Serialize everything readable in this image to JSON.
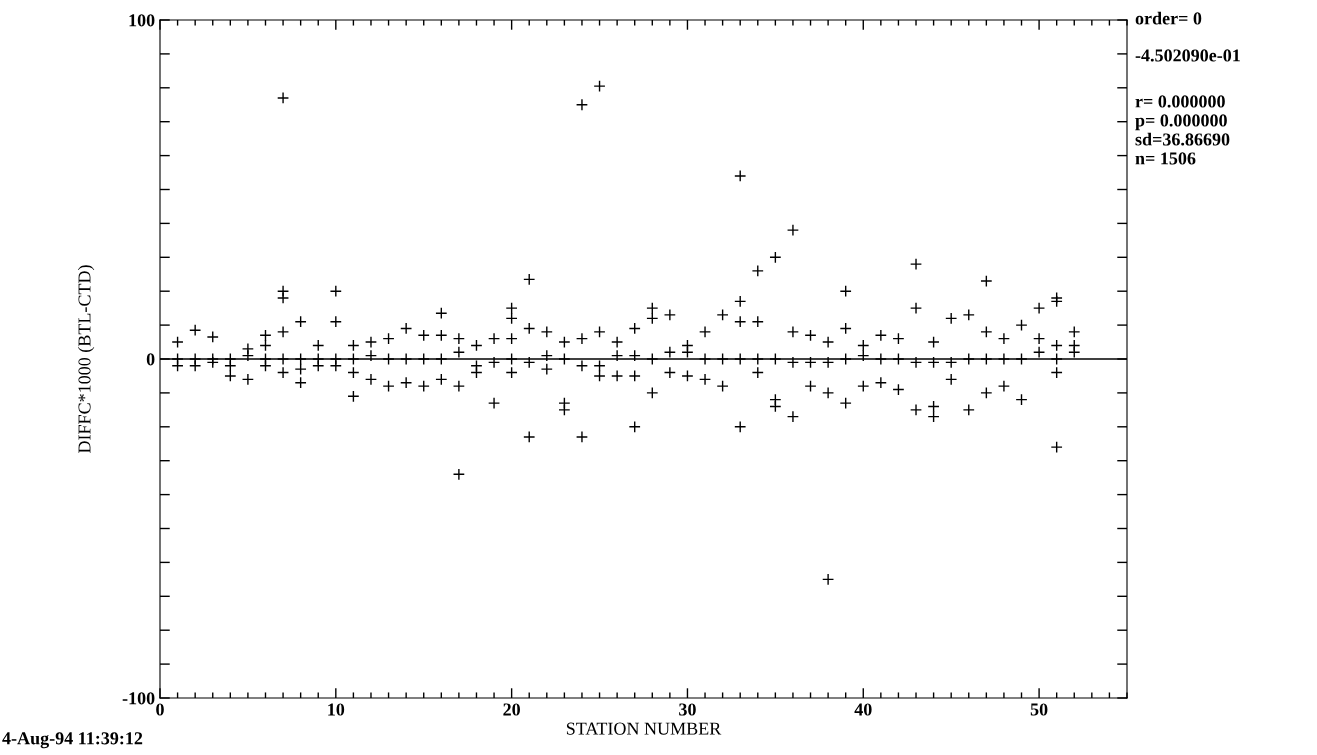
{
  "chart_data": {
    "type": "scatter",
    "xlabel": "STATION NUMBER",
    "ylabel": "DIFFC*1000 (BTL-CTD)",
    "annotations": [
      "order= 0",
      "-4.502090e-01",
      "r= 0.000000",
      "p= 0.000000",
      "sd=36.86690",
      "n= 1506",
      "4-Aug-94 11:39:12"
    ],
    "xlim": [
      0,
      55
    ],
    "ylim": [
      -100,
      100
    ],
    "xticks": [
      0,
      {
        "value": 1,
        "label": null
      },
      {
        "value": 2,
        "label": null
      },
      {
        "value": 3,
        "label": null
      },
      {
        "value": 4,
        "label": null
      },
      {
        "value": 5,
        "label": null
      },
      {
        "value": 6,
        "label": null
      },
      {
        "value": 7,
        "label": null
      },
      {
        "value": 8,
        "label": null
      },
      {
        "value": 9,
        "label": null
      },
      10,
      {
        "value": 11,
        "label": null
      },
      {
        "value": 12,
        "label": null
      },
      {
        "value": 13,
        "label": null
      },
      {
        "value": 14,
        "label": null
      },
      {
        "value": 15,
        "label": null
      },
      {
        "value": 16,
        "label": null
      },
      {
        "value": 17,
        "label": null
      },
      {
        "value": 18,
        "label": null
      },
      {
        "value": 19,
        "label": null
      },
      20,
      {
        "value": 21,
        "label": null
      },
      {
        "value": 22,
        "label": null
      },
      {
        "value": 23,
        "label": null
      },
      {
        "value": 24,
        "label": null
      },
      {
        "value": 25,
        "label": null
      },
      {
        "value": 26,
        "label": null
      },
      {
        "value": 27,
        "label": null
      },
      {
        "value": 28,
        "label": null
      },
      {
        "value": 29,
        "label": null
      },
      30,
      {
        "value": 31,
        "label": null
      },
      {
        "value": 32,
        "label": null
      },
      {
        "value": 33,
        "label": null
      },
      {
        "value": 34,
        "label": null
      },
      {
        "value": 35,
        "label": null
      },
      {
        "value": 36,
        "label": null
      },
      {
        "value": 37,
        "label": null
      },
      {
        "value": 38,
        "label": null
      },
      {
        "value": 39,
        "label": null
      },
      40,
      {
        "value": 41,
        "label": null
      },
      {
        "value": 42,
        "label": null
      },
      {
        "value": 43,
        "label": null
      },
      {
        "value": 44,
        "label": null
      },
      {
        "value": 45,
        "label": null
      },
      {
        "value": 46,
        "label": null
      },
      {
        "value": 47,
        "label": null
      },
      {
        "value": 48,
        "label": null
      },
      {
        "value": 49,
        "label": null
      },
      50,
      {
        "value": 51,
        "label": null
      },
      {
        "value": 52,
        "label": null
      },
      {
        "value": 53,
        "label": null
      },
      {
        "value": 54,
        "label": null
      },
      {
        "value": 55,
        "label": null
      }
    ],
    "yticks": [
      -100,
      {
        "value": -90,
        "label": null
      },
      {
        "value": -80,
        "label": null
      },
      {
        "value": -70,
        "label": null
      },
      {
        "value": -60,
        "label": null
      },
      {
        "value": -50,
        "label": null
      },
      {
        "value": -40,
        "label": null
      },
      {
        "value": -30,
        "label": null
      },
      {
        "value": -20,
        "label": null
      },
      {
        "value": -10,
        "label": null
      },
      0,
      {
        "value": 10,
        "label": null
      },
      {
        "value": 20,
        "label": null
      },
      {
        "value": 30,
        "label": null
      },
      {
        "value": 40,
        "label": null
      },
      {
        "value": 50,
        "label": null
      },
      {
        "value": 60,
        "label": null
      },
      {
        "value": 70,
        "label": null
      },
      {
        "value": 80,
        "label": null
      },
      {
        "value": 90,
        "label": null
      },
      100
    ],
    "ref_lines": [
      {
        "axis": "y",
        "value": 0,
        "color": "#000000"
      }
    ],
    "grid": false,
    "marker": "cross",
    "series": [
      {
        "color": "#000000",
        "x": [
          1,
          1,
          1,
          2,
          2,
          2,
          3,
          3,
          3,
          4,
          4,
          4,
          5,
          5,
          5,
          6,
          6,
          6,
          6,
          7,
          7,
          7,
          7,
          7,
          7,
          8,
          8,
          8,
          8,
          9,
          9,
          9,
          10,
          10,
          10,
          10,
          11,
          11,
          11,
          11,
          12,
          12,
          12,
          13,
          13,
          13,
          14,
          14,
          14,
          15,
          15,
          15,
          16,
          16,
          16,
          16,
          17,
          17,
          17,
          17,
          18,
          18,
          18,
          19,
          19,
          19,
          20,
          20,
          20,
          20,
          20,
          21,
          21,
          21,
          21,
          22,
          22,
          22,
          23,
          23,
          23,
          23,
          24,
          24,
          24,
          24,
          25,
          25,
          25,
          25,
          26,
          26,
          26,
          27,
          27,
          27,
          27,
          28,
          28,
          28,
          28,
          29,
          29,
          29,
          30,
          30,
          30,
          31,
          31,
          31,
          32,
          32,
          32,
          33,
          33,
          33,
          33,
          33,
          34,
          34,
          34,
          34,
          35,
          35,
          35,
          35,
          36,
          36,
          36,
          36,
          37,
          37,
          37,
          38,
          38,
          38,
          38,
          39,
          39,
          39,
          39,
          40,
          40,
          40,
          41,
          41,
          41,
          42,
          42,
          42,
          43,
          43,
          43,
          43,
          44,
          44,
          44,
          44,
          45,
          45,
          45,
          46,
          46,
          46,
          47,
          47,
          47,
          47,
          48,
          48,
          48,
          49,
          49,
          49,
          50,
          50,
          50,
          51,
          51,
          51,
          51,
          51,
          51,
          52,
          52,
          52
        ],
        "values": [
          0,
          -2,
          5,
          0,
          -2,
          8.5,
          0,
          -1,
          6.5,
          0,
          -2,
          -5,
          1,
          3,
          -6,
          0,
          4,
          7,
          -2,
          0,
          77,
          20,
          18,
          8,
          -4,
          0,
          11,
          -7,
          -3,
          0,
          4,
          -2,
          0,
          20,
          11,
          -2,
          0,
          4,
          -11,
          -4,
          1,
          5,
          -6,
          0,
          6,
          -8,
          0,
          9,
          -7,
          0,
          7,
          -8,
          0,
          13.5,
          7,
          -6,
          2,
          6,
          -8,
          -34,
          -2,
          4,
          -4,
          -1,
          6,
          -13,
          0,
          15,
          12,
          6,
          -4,
          -1,
          23.5,
          9,
          -23,
          1,
          8,
          -3,
          0,
          5,
          -13,
          -15,
          -2,
          75,
          6,
          -23,
          -2,
          80.5,
          8,
          -5,
          1,
          5,
          -5,
          1,
          9,
          -5,
          -20,
          0,
          15,
          12,
          -10,
          2,
          13,
          -4,
          2,
          4,
          -5,
          0,
          8,
          -6,
          0,
          13,
          -8,
          0,
          54,
          17,
          11,
          -20,
          0,
          26,
          11,
          -4,
          0,
          30,
          -12,
          -14,
          -1,
          38,
          8,
          -17,
          -1,
          7,
          -8,
          -1,
          -65,
          5,
          -10,
          0,
          20,
          9,
          -13,
          1,
          4,
          -8,
          0,
          7,
          -7,
          0,
          6,
          -9,
          -1,
          28,
          15,
          -15,
          -1,
          5,
          -17,
          -14,
          -1,
          12,
          -6,
          0,
          13,
          -15,
          0,
          23,
          8,
          -10,
          0,
          6,
          -8,
          0,
          10,
          -12,
          2,
          15,
          6,
          0,
          18,
          17,
          4,
          -4,
          -26,
          2,
          8,
          4
        ]
      }
    ]
  }
}
